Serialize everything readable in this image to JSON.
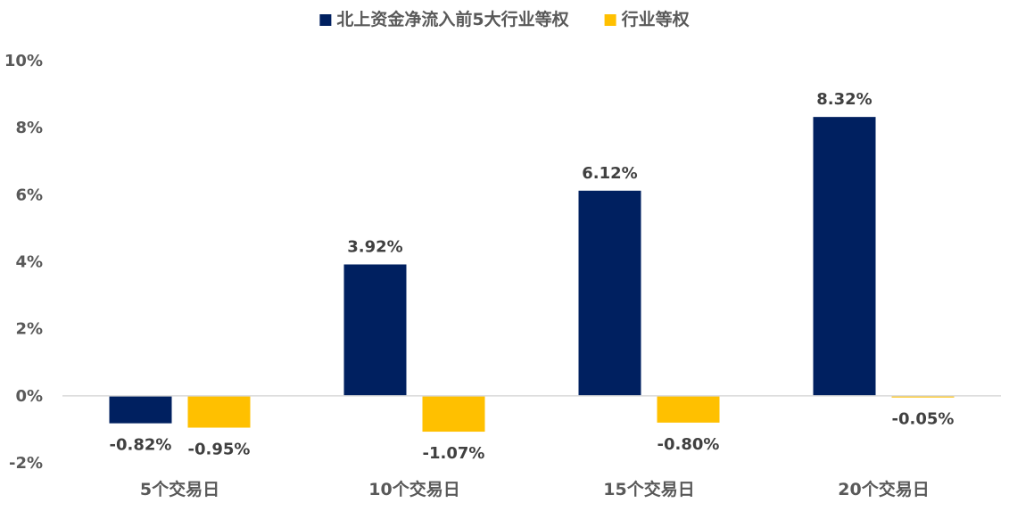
{
  "chart_data": {
    "type": "bar",
    "categories": [
      "5个交易日",
      "10个交易日",
      "15个交易日",
      "20个交易日"
    ],
    "series": [
      {
        "name": "北上资金净流入前5大行业等权",
        "color": "#002060",
        "values": [
          -0.82,
          3.92,
          6.12,
          8.32
        ],
        "labels": [
          "-0.82%",
          "3.92%",
          "6.12%",
          "8.32%"
        ]
      },
      {
        "name": "行业等权",
        "color": "#FFC000",
        "values": [
          -0.95,
          -1.07,
          -0.8,
          -0.05
        ],
        "labels": [
          "-0.95%",
          "-1.07%",
          "-0.80%",
          "-0.05%"
        ]
      }
    ],
    "yticks": [
      -2,
      0,
      2,
      4,
      6,
      8,
      10
    ],
    "ytick_labels": [
      "-2%",
      "0%",
      "2%",
      "4%",
      "6%",
      "8%",
      "10%"
    ],
    "ylim": [
      -2,
      10
    ],
    "legend_position": "top-center",
    "grid": false
  }
}
